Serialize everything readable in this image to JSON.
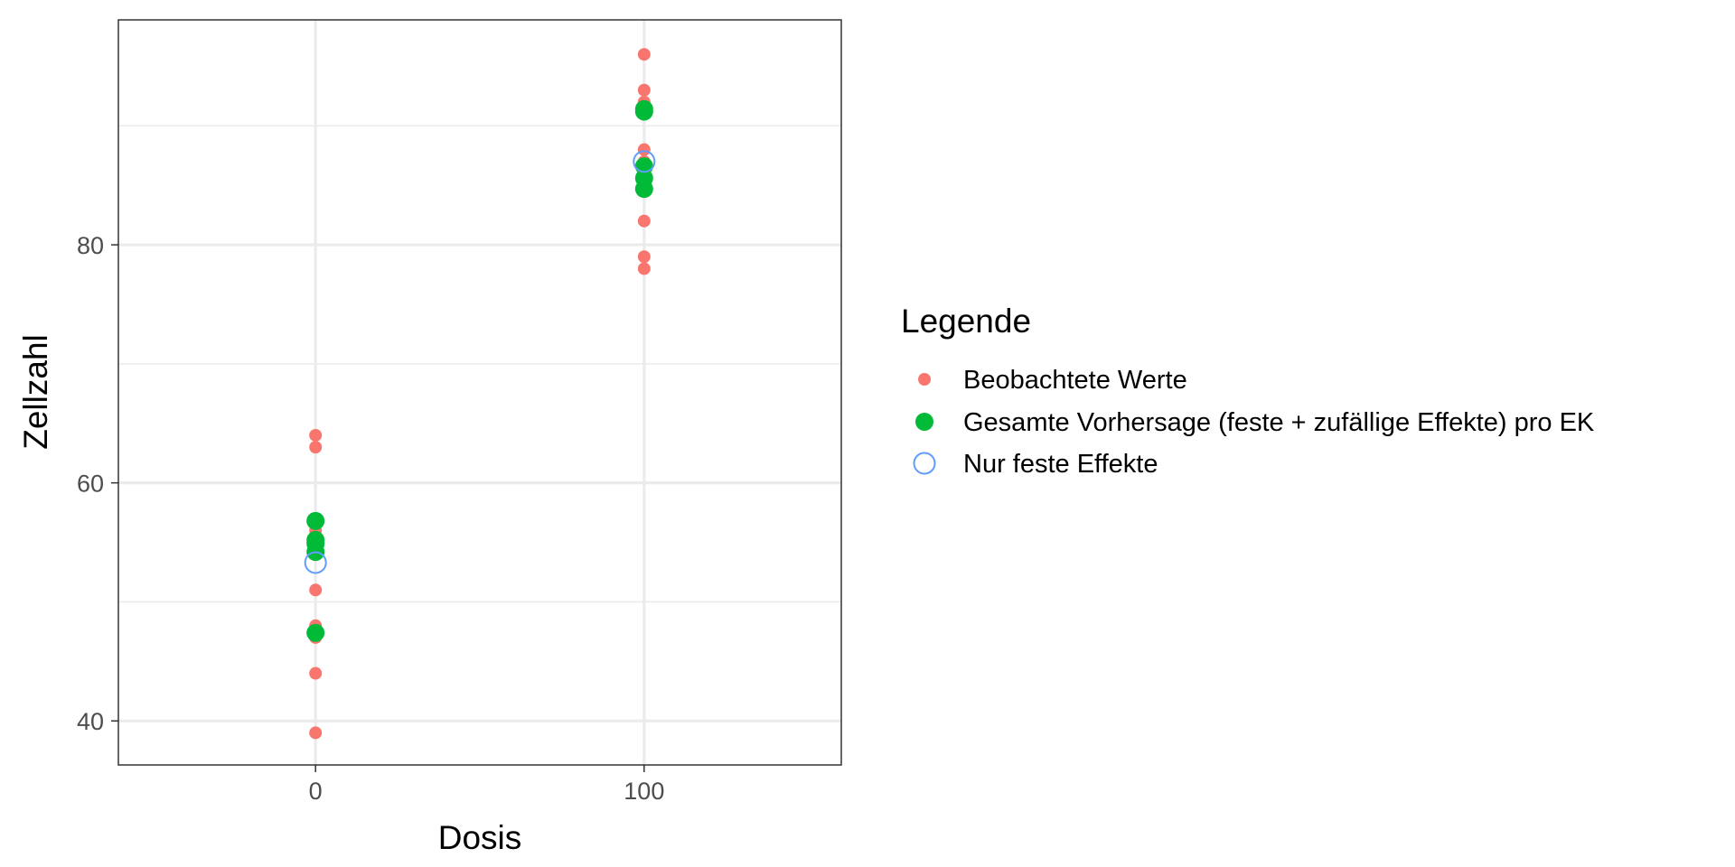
{
  "chart_data": {
    "type": "scatter",
    "xlabel": "Dosis",
    "ylabel": "Zellzahl",
    "xlim": [
      -60,
      160
    ],
    "ylim": [
      36.3,
      98.9
    ],
    "x_ticks": [
      0,
      100
    ],
    "x_minor_ticks": [],
    "y_ticks": [
      40,
      60,
      80
    ],
    "y_minor_ticks": [
      50,
      70,
      90
    ],
    "grid": true,
    "legend": {
      "title": "Legende",
      "position": "right"
    },
    "series": [
      {
        "name": "Beobachtete Werte",
        "marker": "filled-circle-small",
        "color": "#F8766D",
        "points": [
          {
            "x": 0,
            "y": 39
          },
          {
            "x": 0,
            "y": 44
          },
          {
            "x": 0,
            "y": 47
          },
          {
            "x": 0,
            "y": 48
          },
          {
            "x": 0,
            "y": 51
          },
          {
            "x": 0,
            "y": 54
          },
          {
            "x": 0,
            "y": 55
          },
          {
            "x": 0,
            "y": 56
          },
          {
            "x": 0,
            "y": 57
          },
          {
            "x": 0,
            "y": 63
          },
          {
            "x": 0,
            "y": 64
          },
          {
            "x": 100,
            "y": 78
          },
          {
            "x": 100,
            "y": 79
          },
          {
            "x": 100,
            "y": 82
          },
          {
            "x": 100,
            "y": 85
          },
          {
            "x": 100,
            "y": 86
          },
          {
            "x": 100,
            "y": 87
          },
          {
            "x": 100,
            "y": 88
          },
          {
            "x": 100,
            "y": 91
          },
          {
            "x": 100,
            "y": 92
          },
          {
            "x": 100,
            "y": 93
          },
          {
            "x": 100,
            "y": 96
          }
        ]
      },
      {
        "name": "Gesamte Vorhersage (feste + zufällige Effekte) pro EK",
        "marker": "filled-circle-large",
        "color": "#00BA38",
        "points": [
          {
            "x": 0,
            "y": 47.4
          },
          {
            "x": 0,
            "y": 54.2
          },
          {
            "x": 0,
            "y": 54.9
          },
          {
            "x": 0,
            "y": 55.2
          },
          {
            "x": 0,
            "y": 56.8
          },
          {
            "x": 100,
            "y": 84.7
          },
          {
            "x": 100,
            "y": 85.6
          },
          {
            "x": 100,
            "y": 86.6
          },
          {
            "x": 100,
            "y": 91.2
          },
          {
            "x": 100,
            "y": 91.4
          }
        ]
      },
      {
        "name": "Nur feste Effekte",
        "marker": "open-circle",
        "color": "#619CFF",
        "points": [
          {
            "x": 0,
            "y": 53.3
          },
          {
            "x": 100,
            "y": 87.0
          }
        ]
      }
    ]
  }
}
